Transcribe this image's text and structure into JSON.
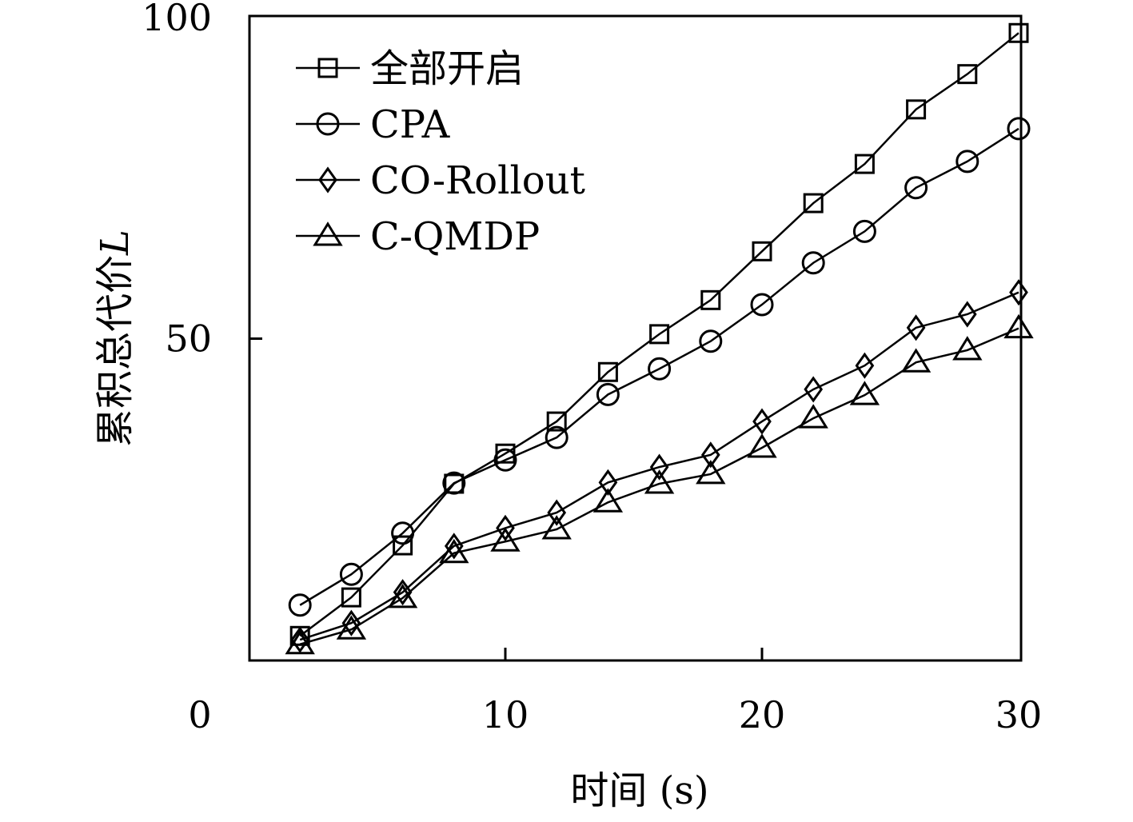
{
  "chart_data": {
    "type": "line",
    "title": "",
    "xlabel": "时间 (s)",
    "ylabel": "累积总代价",
    "ylabel_symbol": "L",
    "xlim": [
      0,
      30
    ],
    "ylim": [
      0,
      100
    ],
    "xticks": [
      10,
      20,
      30
    ],
    "yticks": [
      100,
      50,
      0
    ],
    "grid": false,
    "legend_position": "top-left",
    "x": [
      2,
      4,
      6,
      8,
      10,
      12,
      14,
      16,
      18,
      20,
      22,
      24,
      26,
      28,
      30
    ],
    "series": [
      {
        "name": "全部开启",
        "marker": "square",
        "values": [
          3.7,
          9.7,
          17.8,
          27.4,
          32.1,
          37.1,
          44.8,
          50.7,
          56.0,
          63.6,
          71.1,
          77.2,
          85.7,
          91.2,
          97.6
        ]
      },
      {
        "name": "CPA",
        "marker": "circle",
        "values": [
          8.5,
          13.3,
          19.7,
          27.5,
          31.1,
          34.6,
          41.3,
          45.3,
          49.6,
          55.3,
          61.8,
          66.7,
          73.5,
          77.6,
          82.7
        ]
      },
      {
        "name": "CO-Rollout",
        "marker": "diamond",
        "values": [
          3.1,
          5.7,
          10.5,
          17.7,
          20.5,
          22.9,
          27.6,
          30.0,
          31.9,
          37.1,
          42.1,
          45.8,
          51.7,
          53.8,
          57.2
        ]
      },
      {
        "name": "C-QMDP",
        "marker": "triangle",
        "values": [
          2.4,
          4.7,
          9.6,
          16.6,
          18.4,
          20.3,
          24.5,
          27.4,
          28.9,
          33.0,
          37.6,
          41.2,
          46.3,
          48.2,
          51.6
        ]
      }
    ]
  }
}
